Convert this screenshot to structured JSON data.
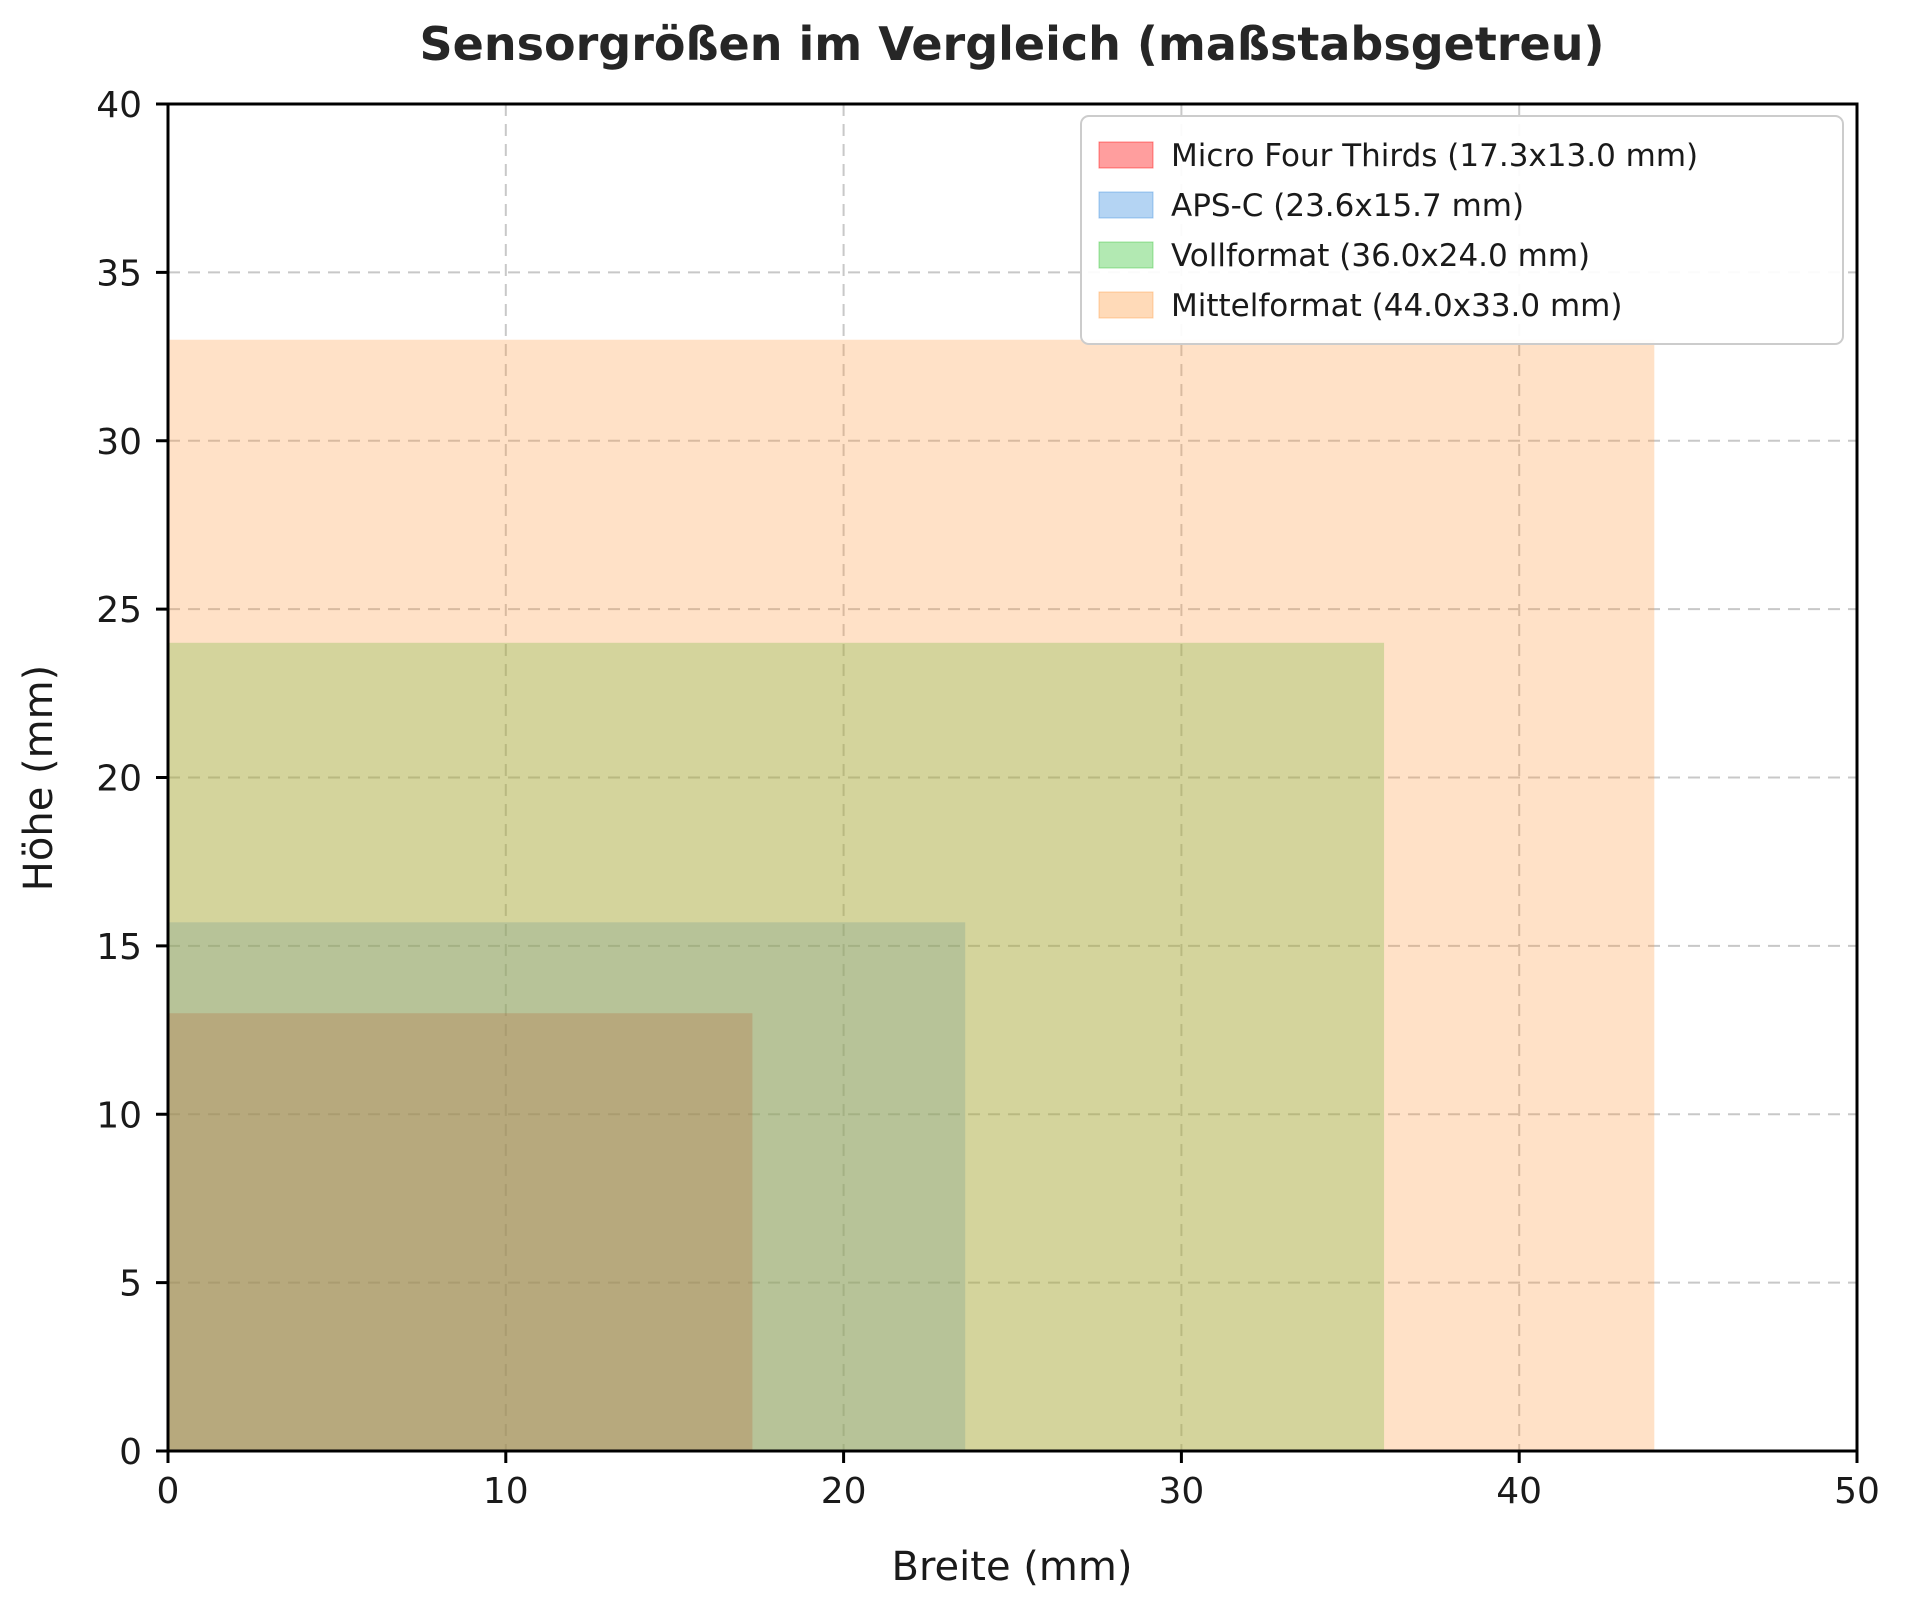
{
  "chart_data": {
    "type": "area",
    "title": "Sensorgrößen im Vergleich (maßstabsgetreu)",
    "xlabel": "Breite (mm)",
    "ylabel": "Höhe (mm)",
    "xlim": [
      0,
      50
    ],
    "ylim": [
      0,
      40
    ],
    "xticks": [
      0,
      10,
      20,
      30,
      40,
      50
    ],
    "yticks": [
      0,
      5,
      10,
      15,
      20,
      25,
      30,
      35,
      40
    ],
    "grid": true,
    "grid_style": "dashed",
    "legend_position": "upper right",
    "fill_opacity": 0.3,
    "series": [
      {
        "name": "Micro Four Thirds (17.3x13.0 mm)",
        "width_mm": 17.3,
        "height_mm": 13.0,
        "color": "#ff0000"
      },
      {
        "name": "APS-C (23.6x15.7 mm)",
        "width_mm": 23.6,
        "height_mm": 15.7,
        "color": "#3b8fe0"
      },
      {
        "name": "Vollformat (36.0x24.0 mm)",
        "width_mm": 36.0,
        "height_mm": 24.0,
        "color": "#35c435"
      },
      {
        "name": "Mittelformat (44.0x33.0 mm)",
        "width_mm": 44.0,
        "height_mm": 33.0,
        "color": "#ff9d45"
      }
    ],
    "colors": {
      "grid": "#c8c8c8",
      "axis": "#000000",
      "legend_border": "#cccccc",
      "legend_background": "#ffffff"
    }
  }
}
